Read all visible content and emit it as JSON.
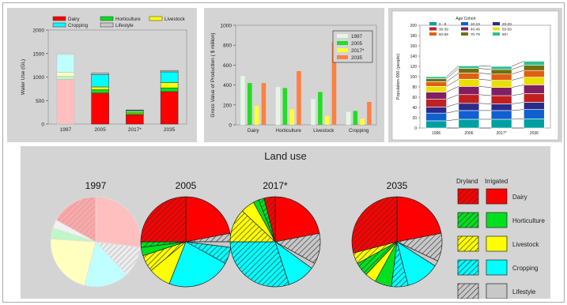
{
  "chart_data": [
    {
      "type": "bar",
      "stacked": true,
      "categories": [
        "1997",
        "2005",
        "2017*",
        "2035"
      ],
      "ylabel": "Water Use (GL)",
      "ylim": [
        0,
        2000
      ],
      "yticks": [
        "0",
        "500",
        "1000",
        "1500",
        "2000"
      ],
      "legend": [
        "Dairy",
        "Horticulture",
        "Livestock",
        "Cropping",
        "Lifestyle"
      ],
      "series": [
        {
          "name": "Dairy",
          "values": [
            950,
            660,
            200,
            690
          ]
        },
        {
          "name": "Horticulture",
          "values": [
            70,
            70,
            40,
            80
          ]
        },
        {
          "name": "Livestock",
          "values": [
            80,
            60,
            30,
            110
          ]
        },
        {
          "name": "Cropping",
          "values": [
            380,
            260,
            20,
            230
          ]
        },
        {
          "name": "Lifestyle",
          "values": [
            20,
            30,
            10,
            30
          ]
        }
      ],
      "faded_categories": [
        "1997"
      ]
    },
    {
      "type": "bar",
      "categories": [
        "Dairy",
        "Horticulture",
        "Livestock",
        "Cropping"
      ],
      "ylabel": "Gross Value of Production ( $ million)",
      "ylim": [
        0,
        1000
      ],
      "yticks": [
        "0",
        "200",
        "400",
        "600",
        "800",
        "1000"
      ],
      "series": [
        {
          "name": "1997",
          "values": [
            490,
            380,
            260,
            130
          ]
        },
        {
          "name": "2005",
          "values": [
            420,
            370,
            330,
            140
          ]
        },
        {
          "name": "2017*",
          "values": [
            190,
            155,
            90,
            60
          ]
        },
        {
          "name": "2035",
          "values": [
            420,
            540,
            830,
            230
          ]
        }
      ]
    },
    {
      "type": "bar",
      "stacked": true,
      "categories": [
        "1996",
        "2006",
        "2017*",
        "2036"
      ],
      "ylabel": "Population 000 (people)",
      "ylim": [
        0,
        200
      ],
      "yticks": [
        "0",
        "20",
        "40",
        "60",
        "80",
        "100",
        "120",
        "140",
        "160",
        "180",
        "200"
      ],
      "legend_title": "Age Cohort",
      "legend": [
        "0 - 9",
        "10-19",
        "20-29",
        "30-39",
        "40-49",
        "50-59",
        "60-69",
        "70-79",
        "80+"
      ],
      "series": [
        {
          "name": "0 - 9",
          "values": [
            14,
            17,
            17,
            18
          ]
        },
        {
          "name": "10-19",
          "values": [
            15,
            17,
            17,
            18
          ]
        },
        {
          "name": "20-29",
          "values": [
            12,
            14,
            13,
            14
          ]
        },
        {
          "name": "30-39",
          "values": [
            15,
            17,
            16,
            17
          ]
        },
        {
          "name": "40-49",
          "values": [
            14,
            16,
            16,
            17
          ]
        },
        {
          "name": "50-59",
          "values": [
            11,
            14,
            14,
            15
          ]
        },
        {
          "name": "60-69",
          "values": [
            9,
            12,
            12,
            13
          ]
        },
        {
          "name": "70-79",
          "values": [
            6,
            9,
            9,
            10
          ]
        },
        {
          "name": "80+",
          "values": [
            4,
            5,
            6,
            8
          ]
        }
      ]
    },
    {
      "type": "pie",
      "title": "Land use",
      "categories": [
        "Dairy",
        "Horticulture",
        "Livestock",
        "Cropping",
        "Lifestyle"
      ],
      "legend_headers": [
        "Dryland",
        "Irrigated"
      ],
      "pies": [
        {
          "label": "1997",
          "faded": true,
          "slices": [
            {
              "cat": "Dairy",
              "type": "irrigated",
              "value": 27
            },
            {
              "cat": "Lifestyle",
              "type": "dryland",
              "value": 11
            },
            {
              "cat": "Cropping",
              "type": "irrigated",
              "value": 16
            },
            {
              "cat": "Livestock",
              "type": "irrigated",
              "value": 22
            },
            {
              "cat": "Horticulture",
              "type": "irrigated",
              "value": 4
            },
            {
              "cat": "Lifestyle",
              "type": "irrigated",
              "value": 3
            },
            {
              "cat": "Dairy",
              "type": "dryland",
              "value": 17
            }
          ]
        },
        {
          "label": "2005",
          "faded": false,
          "slices": [
            {
              "cat": "Dairy",
              "type": "irrigated",
              "value": 22
            },
            {
              "cat": "Lifestyle",
              "type": "dryland",
              "value": 3
            },
            {
              "cat": "Lifestyle",
              "type": "irrigated",
              "value": 2
            },
            {
              "cat": "Cropping",
              "type": "dryland",
              "value": 6
            },
            {
              "cat": "Cropping",
              "type": "irrigated",
              "value": 23
            },
            {
              "cat": "Livestock",
              "type": "irrigated",
              "value": 8
            },
            {
              "cat": "Livestock",
              "type": "dryland",
              "value": 6
            },
            {
              "cat": "Horticulture",
              "type": "irrigated",
              "value": 3
            },
            {
              "cat": "Horticulture",
              "type": "dryland",
              "value": 2
            },
            {
              "cat": "Dairy",
              "type": "dryland",
              "value": 25
            }
          ]
        },
        {
          "label": "2017*",
          "faded": false,
          "slices": [
            {
              "cat": "Dairy",
              "type": "irrigated",
              "value": 22
            },
            {
              "cat": "Lifestyle",
              "type": "dryland",
              "value": 11
            },
            {
              "cat": "Lifestyle",
              "type": "irrigated",
              "value": 2
            },
            {
              "cat": "Cropping",
              "type": "irrigated",
              "value": 10
            },
            {
              "cat": "Cropping",
              "type": "dryland",
              "value": 30
            },
            {
              "cat": "Livestock",
              "type": "dryland",
              "value": 12
            },
            {
              "cat": "Livestock",
              "type": "irrigated",
              "value": 5
            },
            {
              "cat": "Horticulture",
              "type": "irrigated",
              "value": 2
            },
            {
              "cat": "Horticulture",
              "type": "dryland",
              "value": 2
            },
            {
              "cat": "Dairy",
              "type": "dryland",
              "value": 4
            }
          ]
        },
        {
          "label": "2035",
          "faded": false,
          "slices": [
            {
              "cat": "Dairy",
              "type": "irrigated",
              "value": 22
            },
            {
              "cat": "Lifestyle",
              "type": "dryland",
              "value": 10
            },
            {
              "cat": "Lifestyle",
              "type": "irrigated",
              "value": 2
            },
            {
              "cat": "Cropping",
              "type": "irrigated",
              "value": 12
            },
            {
              "cat": "Cropping",
              "type": "dryland",
              "value": 6
            },
            {
              "cat": "Horticulture",
              "type": "irrigated",
              "value": 6
            },
            {
              "cat": "Livestock",
              "type": "irrigated",
              "value": 4
            },
            {
              "cat": "Horticulture",
              "type": "dryland",
              "value": 5
            },
            {
              "cat": "Livestock",
              "type": "dryland",
              "value": 4
            },
            {
              "cat": "Dairy",
              "type": "dryland",
              "value": 29
            }
          ]
        }
      ]
    }
  ],
  "colors": {
    "Dairy": "#ff0000",
    "Horticulture": "#00e020",
    "Livestock": "#ffff00",
    "Cropping": "#00ffff",
    "Lifestyle": "#c8c8c8",
    "gvp_1997": "#e6f5e6",
    "gvp_2005": "#22dd22",
    "gvp_2017": "#ffff33",
    "gvp_2035": "#ff8040",
    "age": [
      "#00a0a0",
      "#1060d0",
      "#2b2b8a",
      "#c02020",
      "#802060",
      "#e8e000",
      "#e06010",
      "#707010",
      "#30c090"
    ]
  }
}
